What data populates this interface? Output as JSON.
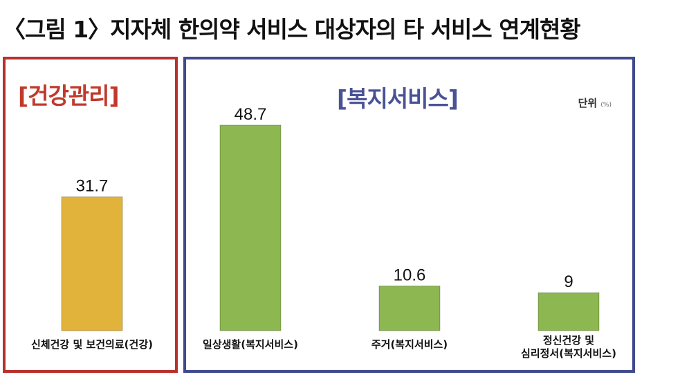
{
  "title": "〈그림 1〉지자체 한의약 서비스 대상자의 타 서비스 연계현황",
  "panels": {
    "health": {
      "label": "[건강관리]"
    },
    "welfare": {
      "label": "[복지서비스]",
      "unit": "단위",
      "unit_small": "(%)"
    }
  },
  "colors": {
    "health_bar": "#e2b33a",
    "welfare_bar": "#8db750",
    "health_border": "#b8312f",
    "welfare_border": "#3f4a8f"
  },
  "chart_data": {
    "type": "bar",
    "title": "〈그림 1〉지자체 한의약 서비스 대상자의 타 서비스 연계현황",
    "ylabel": "",
    "unit": "(%)",
    "ylim": [
      0,
      50
    ],
    "categories": [
      "신체건강 및 보건의료(건강)",
      "일상생활(복지서비스)",
      "주거(복지서비스)",
      "정신건강 및 심리정서(복지서비스)"
    ],
    "category_lines": [
      [
        "신체건강 및 보건의료(건강)"
      ],
      [
        "일상생활(복지서비스)"
      ],
      [
        "주거(복지서비스)"
      ],
      [
        "정신건강 및",
        "심리정서(복지서비스)"
      ]
    ],
    "groups": [
      "건강관리",
      "복지서비스",
      "복지서비스",
      "복지서비스"
    ],
    "values": [
      31.7,
      48.7,
      10.6,
      9
    ],
    "value_labels": [
      "31.7",
      "48.7",
      "10.6",
      "9"
    ]
  }
}
